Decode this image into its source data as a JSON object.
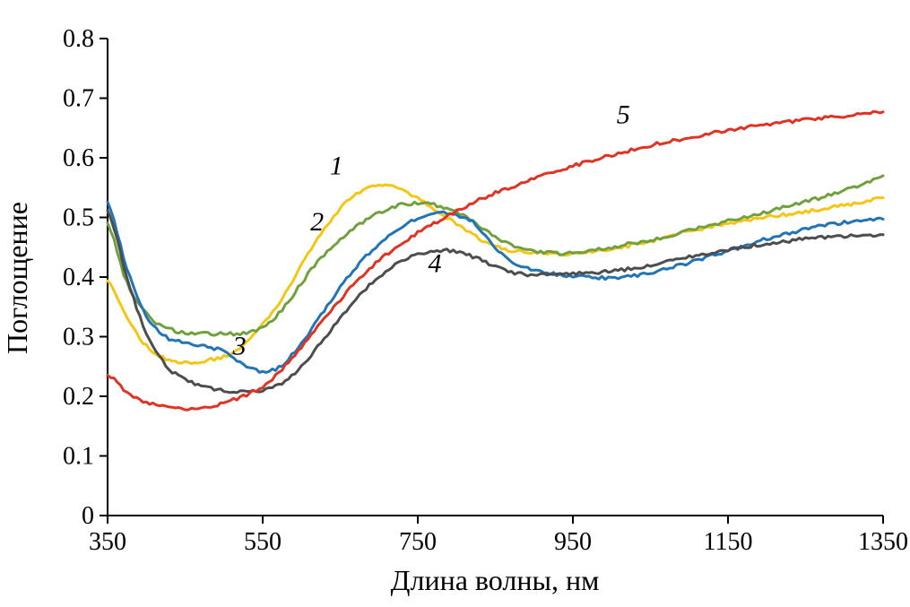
{
  "figure": {
    "background": "#ffffff"
  },
  "chart_data": {
    "type": "line",
    "title": "",
    "xlabel": "Длина волны, нм",
    "ylabel": "Поглощение",
    "xlim": [
      350,
      1350
    ],
    "ylim": [
      0,
      0.8
    ],
    "x_ticks": [
      350,
      550,
      750,
      950,
      1150,
      1350
    ],
    "y_ticks": [
      0,
      0.1,
      0.2,
      0.3,
      0.4,
      0.5,
      0.6,
      0.7,
      0.8
    ],
    "grid": false,
    "legend": "none",
    "axis_color": "#000000",
    "series": [
      {
        "name": "1",
        "label": "1",
        "color": "#F5C513",
        "label_pos": [
          645,
          0.572
        ],
        "points": [
          [
            350,
            0.395
          ],
          [
            375,
            0.33
          ],
          [
            400,
            0.285
          ],
          [
            425,
            0.263
          ],
          [
            450,
            0.257
          ],
          [
            475,
            0.26
          ],
          [
            500,
            0.267
          ],
          [
            525,
            0.285
          ],
          [
            550,
            0.32
          ],
          [
            575,
            0.365
          ],
          [
            600,
            0.42
          ],
          [
            625,
            0.472
          ],
          [
            650,
            0.515
          ],
          [
            675,
            0.543
          ],
          [
            700,
            0.553
          ],
          [
            725,
            0.549
          ],
          [
            750,
            0.532
          ],
          [
            775,
            0.51
          ],
          [
            800,
            0.49
          ],
          [
            825,
            0.468
          ],
          [
            850,
            0.452
          ],
          [
            875,
            0.444
          ],
          [
            900,
            0.441
          ],
          [
            925,
            0.439
          ],
          [
            950,
            0.439
          ],
          [
            975,
            0.442
          ],
          [
            1000,
            0.447
          ],
          [
            1025,
            0.453
          ],
          [
            1050,
            0.46
          ],
          [
            1075,
            0.468
          ],
          [
            1100,
            0.477
          ],
          [
            1125,
            0.484
          ],
          [
            1150,
            0.49
          ],
          [
            1175,
            0.495
          ],
          [
            1200,
            0.5
          ],
          [
            1225,
            0.505
          ],
          [
            1250,
            0.51
          ],
          [
            1275,
            0.515
          ],
          [
            1300,
            0.52
          ],
          [
            1325,
            0.526
          ],
          [
            1350,
            0.533
          ]
        ]
      },
      {
        "name": "2",
        "label": "2",
        "color": "#71A03E",
        "label_pos": [
          620,
          0.478
        ],
        "points": [
          [
            350,
            0.488
          ],
          [
            375,
            0.39
          ],
          [
            400,
            0.338
          ],
          [
            425,
            0.315
          ],
          [
            450,
            0.307
          ],
          [
            475,
            0.305
          ],
          [
            500,
            0.305
          ],
          [
            525,
            0.306
          ],
          [
            550,
            0.315
          ],
          [
            575,
            0.345
          ],
          [
            600,
            0.39
          ],
          [
            625,
            0.432
          ],
          [
            650,
            0.463
          ],
          [
            675,
            0.488
          ],
          [
            700,
            0.508
          ],
          [
            725,
            0.52
          ],
          [
            750,
            0.524
          ],
          [
            775,
            0.52
          ],
          [
            800,
            0.508
          ],
          [
            825,
            0.49
          ],
          [
            850,
            0.468
          ],
          [
            875,
            0.452
          ],
          [
            900,
            0.444
          ],
          [
            925,
            0.44
          ],
          [
            950,
            0.44
          ],
          [
            975,
            0.444
          ],
          [
            1000,
            0.45
          ],
          [
            1025,
            0.456
          ],
          [
            1050,
            0.462
          ],
          [
            1075,
            0.47
          ],
          [
            1100,
            0.478
          ],
          [
            1125,
            0.486
          ],
          [
            1150,
            0.494
          ],
          [
            1175,
            0.502
          ],
          [
            1200,
            0.51
          ],
          [
            1225,
            0.518
          ],
          [
            1250,
            0.527
          ],
          [
            1275,
            0.535
          ],
          [
            1300,
            0.545
          ],
          [
            1325,
            0.557
          ],
          [
            1350,
            0.57
          ]
        ]
      },
      {
        "name": "3",
        "label": "3",
        "color": "#2274B5",
        "label_pos": [
          520,
          0.27
        ],
        "points": [
          [
            350,
            0.525
          ],
          [
            375,
            0.415
          ],
          [
            400,
            0.335
          ],
          [
            425,
            0.3
          ],
          [
            450,
            0.29
          ],
          [
            475,
            0.284
          ],
          [
            500,
            0.275
          ],
          [
            525,
            0.252
          ],
          [
            550,
            0.242
          ],
          [
            575,
            0.252
          ],
          [
            600,
            0.29
          ],
          [
            625,
            0.335
          ],
          [
            650,
            0.383
          ],
          [
            675,
            0.423
          ],
          [
            700,
            0.455
          ],
          [
            725,
            0.48
          ],
          [
            750,
            0.498
          ],
          [
            775,
            0.507
          ],
          [
            800,
            0.504
          ],
          [
            825,
            0.488
          ],
          [
            850,
            0.447
          ],
          [
            875,
            0.424
          ],
          [
            900,
            0.412
          ],
          [
            925,
            0.405
          ],
          [
            950,
            0.402
          ],
          [
            975,
            0.4
          ],
          [
            1000,
            0.398
          ],
          [
            1025,
            0.401
          ],
          [
            1050,
            0.407
          ],
          [
            1075,
            0.415
          ],
          [
            1100,
            0.424
          ],
          [
            1125,
            0.434
          ],
          [
            1150,
            0.444
          ],
          [
            1175,
            0.454
          ],
          [
            1200,
            0.464
          ],
          [
            1225,
            0.472
          ],
          [
            1250,
            0.48
          ],
          [
            1275,
            0.487
          ],
          [
            1300,
            0.492
          ],
          [
            1325,
            0.495
          ],
          [
            1350,
            0.497
          ]
        ]
      },
      {
        "name": "4",
        "label": "4",
        "color": "#4D4D4B",
        "label_pos": [
          772,
          0.408
        ],
        "points": [
          [
            350,
            0.512
          ],
          [
            375,
            0.4
          ],
          [
            400,
            0.305
          ],
          [
            425,
            0.252
          ],
          [
            450,
            0.228
          ],
          [
            475,
            0.216
          ],
          [
            500,
            0.21
          ],
          [
            525,
            0.207
          ],
          [
            550,
            0.21
          ],
          [
            575,
            0.222
          ],
          [
            600,
            0.25
          ],
          [
            625,
            0.29
          ],
          [
            650,
            0.33
          ],
          [
            675,
            0.37
          ],
          [
            700,
            0.4
          ],
          [
            725,
            0.423
          ],
          [
            750,
            0.438
          ],
          [
            775,
            0.445
          ],
          [
            800,
            0.442
          ],
          [
            825,
            0.432
          ],
          [
            850,
            0.417
          ],
          [
            875,
            0.407
          ],
          [
            900,
            0.404
          ],
          [
            925,
            0.406
          ],
          [
            950,
            0.406
          ],
          [
            975,
            0.407
          ],
          [
            1000,
            0.41
          ],
          [
            1025,
            0.414
          ],
          [
            1050,
            0.42
          ],
          [
            1075,
            0.427
          ],
          [
            1100,
            0.434
          ],
          [
            1125,
            0.44
          ],
          [
            1150,
            0.446
          ],
          [
            1175,
            0.451
          ],
          [
            1200,
            0.456
          ],
          [
            1225,
            0.46
          ],
          [
            1250,
            0.464
          ],
          [
            1275,
            0.467
          ],
          [
            1300,
            0.469
          ],
          [
            1325,
            0.47
          ],
          [
            1350,
            0.471
          ]
        ]
      },
      {
        "name": "5",
        "label": "5",
        "color": "#DF3323",
        "label_pos": [
          1015,
          0.658
        ],
        "points": [
          [
            350,
            0.237
          ],
          [
            375,
            0.207
          ],
          [
            400,
            0.19
          ],
          [
            425,
            0.183
          ],
          [
            450,
            0.18
          ],
          [
            475,
            0.182
          ],
          [
            500,
            0.189
          ],
          [
            525,
            0.2
          ],
          [
            550,
            0.217
          ],
          [
            575,
            0.245
          ],
          [
            600,
            0.283
          ],
          [
            625,
            0.323
          ],
          [
            650,
            0.362
          ],
          [
            675,
            0.398
          ],
          [
            700,
            0.428
          ],
          [
            725,
            0.453
          ],
          [
            750,
            0.474
          ],
          [
            775,
            0.493
          ],
          [
            800,
            0.51
          ],
          [
            825,
            0.527
          ],
          [
            850,
            0.541
          ],
          [
            875,
            0.553
          ],
          [
            900,
            0.565
          ],
          [
            925,
            0.576
          ],
          [
            950,
            0.586
          ],
          [
            975,
            0.596
          ],
          [
            1000,
            0.605
          ],
          [
            1025,
            0.613
          ],
          [
            1050,
            0.621
          ],
          [
            1075,
            0.628
          ],
          [
            1100,
            0.634
          ],
          [
            1125,
            0.64
          ],
          [
            1150,
            0.646
          ],
          [
            1175,
            0.651
          ],
          [
            1200,
            0.656
          ],
          [
            1225,
            0.66
          ],
          [
            1250,
            0.664
          ],
          [
            1275,
            0.667
          ],
          [
            1300,
            0.67
          ],
          [
            1325,
            0.674
          ],
          [
            1350,
            0.677
          ]
        ]
      }
    ]
  }
}
